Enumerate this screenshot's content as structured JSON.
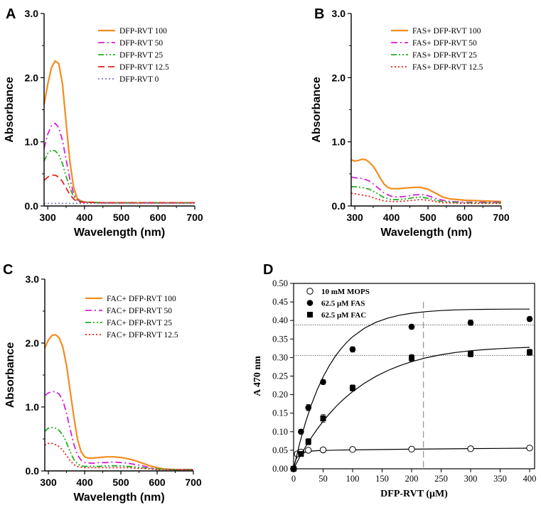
{
  "chart_data": [
    {
      "panel": "A",
      "type": "line",
      "title": "",
      "xlabel": "Wavelength (nm)",
      "ylabel": "Absorbance",
      "xlim": [
        290,
        700
      ],
      "ylim": [
        0,
        3.0
      ],
      "xticks": [
        "300",
        "400",
        "500",
        "600",
        "700"
      ],
      "yticks": [
        "0.0",
        "1.0",
        "2.0",
        "3.0"
      ],
      "legend_position": "top-right",
      "series": [
        {
          "name": "DFP-RVT 100",
          "color": "#f28c1f",
          "dash": "solid",
          "x": [
            290,
            300,
            310,
            320,
            330,
            340,
            350,
            360,
            370,
            380,
            390,
            400,
            450,
            500,
            550,
            600,
            650,
            700
          ],
          "y": [
            1.58,
            1.9,
            2.15,
            2.26,
            2.22,
            1.9,
            1.3,
            0.7,
            0.3,
            0.12,
            0.08,
            0.06,
            0.05,
            0.05,
            0.05,
            0.05,
            0.05,
            0.05
          ]
        },
        {
          "name": "DFP-RVT 50",
          "color": "#d61fd6",
          "dash": "dashdot",
          "x": [
            290,
            300,
            310,
            320,
            330,
            340,
            350,
            360,
            370,
            380,
            390,
            400,
            450,
            500,
            550,
            600,
            650,
            700
          ],
          "y": [
            0.9,
            1.12,
            1.25,
            1.29,
            1.22,
            1.02,
            0.72,
            0.42,
            0.2,
            0.1,
            0.07,
            0.06,
            0.05,
            0.05,
            0.05,
            0.05,
            0.05,
            0.05
          ]
        },
        {
          "name": "DFP-RVT 25",
          "color": "#22b022",
          "dash": "dashdotdot",
          "x": [
            290,
            300,
            310,
            320,
            330,
            340,
            350,
            360,
            370,
            380,
            390,
            400,
            450,
            500,
            550,
            600,
            650,
            700
          ],
          "y": [
            0.7,
            0.82,
            0.87,
            0.86,
            0.8,
            0.66,
            0.46,
            0.28,
            0.15,
            0.09,
            0.07,
            0.06,
            0.05,
            0.05,
            0.05,
            0.05,
            0.05,
            0.05
          ]
        },
        {
          "name": "DFP-RVT 12.5",
          "color": "#e8201c",
          "dash": "dash",
          "x": [
            290,
            300,
            310,
            320,
            330,
            340,
            350,
            360,
            370,
            380,
            390,
            400,
            450,
            500,
            550,
            600,
            650,
            700
          ],
          "y": [
            0.4,
            0.45,
            0.48,
            0.48,
            0.45,
            0.38,
            0.28,
            0.18,
            0.11,
            0.07,
            0.06,
            0.06,
            0.05,
            0.05,
            0.05,
            0.05,
            0.05,
            0.05
          ]
        },
        {
          "name": "DFP-RVT 0",
          "color": "#7b7bc9",
          "dash": "dot",
          "x": [
            290,
            350,
            400,
            500,
            600,
            700
          ],
          "y": [
            0.04,
            0.04,
            0.04,
            0.04,
            0.04,
            0.04
          ]
        }
      ]
    },
    {
      "panel": "B",
      "type": "line",
      "title": "",
      "xlabel": "Wavelength (nm)",
      "ylabel": "Absorbance",
      "xlim": [
        290,
        700
      ],
      "ylim": [
        0,
        3.0
      ],
      "xticks": [
        "300",
        "400",
        "500",
        "600",
        "700"
      ],
      "yticks": [
        "0.0",
        "1.0",
        "2.0",
        "3.0"
      ],
      "legend_position": "top-right",
      "series": [
        {
          "name": "FAS+ DFP-RVT 100",
          "color": "#f28c1f",
          "dash": "solid",
          "x": [
            290,
            300,
            310,
            320,
            330,
            340,
            350,
            360,
            370,
            380,
            390,
            400,
            420,
            440,
            460,
            480,
            500,
            520,
            540,
            560,
            600,
            650,
            700
          ],
          "y": [
            0.72,
            0.7,
            0.71,
            0.73,
            0.72,
            0.68,
            0.62,
            0.53,
            0.43,
            0.34,
            0.29,
            0.27,
            0.27,
            0.28,
            0.29,
            0.29,
            0.26,
            0.2,
            0.14,
            0.11,
            0.09,
            0.08,
            0.07
          ]
        },
        {
          "name": "FAS+ DFP-RVT 50",
          "color": "#d61fd6",
          "dash": "dashdot",
          "x": [
            290,
            300,
            320,
            340,
            360,
            380,
            400,
            420,
            440,
            460,
            480,
            500,
            520,
            540,
            560,
            600,
            650,
            700
          ],
          "y": [
            0.45,
            0.44,
            0.43,
            0.39,
            0.3,
            0.2,
            0.15,
            0.14,
            0.15,
            0.17,
            0.18,
            0.16,
            0.12,
            0.09,
            0.07,
            0.06,
            0.06,
            0.06
          ]
        },
        {
          "name": "FAS+ DFP-RVT 25",
          "color": "#22b022",
          "dash": "dashdotdot",
          "x": [
            290,
            300,
            320,
            340,
            360,
            380,
            400,
            420,
            440,
            460,
            480,
            500,
            520,
            540,
            560,
            600,
            650,
            700
          ],
          "y": [
            0.3,
            0.3,
            0.29,
            0.26,
            0.2,
            0.13,
            0.1,
            0.1,
            0.11,
            0.13,
            0.14,
            0.12,
            0.09,
            0.07,
            0.06,
            0.05,
            0.05,
            0.05
          ]
        },
        {
          "name": "FAS+ DFP-RVT 12.5",
          "color": "#e8201c",
          "dash": "dot",
          "x": [
            290,
            300,
            320,
            340,
            360,
            380,
            400,
            420,
            440,
            460,
            480,
            500,
            520,
            540,
            560,
            600,
            650,
            700
          ],
          "y": [
            0.2,
            0.19,
            0.17,
            0.15,
            0.11,
            0.08,
            0.07,
            0.07,
            0.08,
            0.09,
            0.1,
            0.09,
            0.07,
            0.05,
            0.05,
            0.04,
            0.04,
            0.04
          ]
        }
      ]
    },
    {
      "panel": "C",
      "type": "line",
      "title": "",
      "xlabel": "Wavelength (nm)",
      "ylabel": "Absorbance",
      "xlim": [
        290,
        700
      ],
      "ylim": [
        0,
        3.0
      ],
      "xticks": [
        "300",
        "400",
        "500",
        "600",
        "700"
      ],
      "yticks": [
        "0.0",
        "1.0",
        "2.0",
        "3.0"
      ],
      "legend_position": "top-right",
      "series": [
        {
          "name": "FAC+ DFP-RVT 100",
          "color": "#f28c1f",
          "dash": "solid",
          "x": [
            290,
            300,
            310,
            320,
            330,
            340,
            350,
            360,
            370,
            380,
            390,
            400,
            410,
            420,
            440,
            460,
            480,
            500,
            520,
            540,
            560,
            580,
            600,
            620,
            650,
            700
          ],
          "y": [
            1.92,
            2.05,
            2.12,
            2.13,
            2.08,
            1.93,
            1.65,
            1.25,
            0.85,
            0.5,
            0.3,
            0.22,
            0.2,
            0.2,
            0.21,
            0.22,
            0.22,
            0.21,
            0.19,
            0.16,
            0.12,
            0.08,
            0.05,
            0.03,
            0.02,
            0.02
          ]
        },
        {
          "name": "FAC+ DFP-RVT 50",
          "color": "#d61fd6",
          "dash": "dashdot",
          "x": [
            290,
            300,
            310,
            320,
            330,
            340,
            350,
            360,
            370,
            380,
            390,
            400,
            420,
            440,
            460,
            480,
            500,
            520,
            540,
            560,
            580,
            600,
            650,
            700
          ],
          "y": [
            1.18,
            1.22,
            1.24,
            1.24,
            1.2,
            1.1,
            0.9,
            0.65,
            0.42,
            0.25,
            0.17,
            0.13,
            0.12,
            0.13,
            0.13,
            0.14,
            0.13,
            0.12,
            0.1,
            0.08,
            0.05,
            0.03,
            0.02,
            0.02
          ]
        },
        {
          "name": "FAC+ DFP-RVT 25",
          "color": "#22b022",
          "dash": "dashdotdot",
          "x": [
            290,
            300,
            310,
            320,
            330,
            340,
            350,
            360,
            370,
            380,
            390,
            400,
            420,
            440,
            460,
            480,
            500,
            520,
            540,
            560,
            580,
            600,
            650,
            700
          ],
          "y": [
            0.62,
            0.67,
            0.68,
            0.67,
            0.63,
            0.56,
            0.44,
            0.3,
            0.18,
            0.11,
            0.08,
            0.07,
            0.07,
            0.07,
            0.08,
            0.08,
            0.08,
            0.07,
            0.06,
            0.05,
            0.04,
            0.03,
            0.02,
            0.02
          ]
        },
        {
          "name": "FAC+ DFP-RVT 12.5",
          "color": "#e8201c",
          "dash": "dot",
          "x": [
            290,
            300,
            310,
            320,
            330,
            340,
            350,
            360,
            370,
            380,
            390,
            400,
            420,
            440,
            460,
            480,
            500,
            520,
            540,
            560,
            580,
            600,
            650,
            700
          ],
          "y": [
            0.4,
            0.43,
            0.43,
            0.41,
            0.38,
            0.32,
            0.24,
            0.16,
            0.1,
            0.07,
            0.06,
            0.05,
            0.05,
            0.05,
            0.05,
            0.05,
            0.05,
            0.05,
            0.04,
            0.04,
            0.03,
            0.02,
            0.02,
            0.02
          ]
        }
      ]
    },
    {
      "panel": "D",
      "type": "scatter",
      "title": "",
      "xlabel": "DFP-RVT (μM)",
      "ylabel": "A 470 nm",
      "xlim": [
        0,
        400
      ],
      "ylim": [
        0,
        0.5
      ],
      "xticks": [
        "0",
        "50",
        "100",
        "150",
        "200",
        "250",
        "300",
        "350",
        "400"
      ],
      "yticks": [
        "0.00",
        "0.05",
        "0.10",
        "0.15",
        "0.20",
        "0.25",
        "0.30",
        "0.35",
        "0.40",
        "0.45",
        "0.50"
      ],
      "legend_position": "top-left",
      "reference_lines": {
        "h": [
          0.388,
          0.306
        ],
        "v": [
          220
        ]
      },
      "series": [
        {
          "name": "10 mM MOPS",
          "marker": "open-circle",
          "x": [
            0,
            6.25,
            12.5,
            25,
            50,
            100,
            200,
            300,
            400
          ],
          "y": [
            0.0,
            0.04,
            0.045,
            0.05,
            0.051,
            0.052,
            0.053,
            0.054,
            0.056
          ],
          "err": [
            0.003,
            0.003,
            0.003,
            0.003,
            0.003,
            0.003,
            0.003,
            0.003,
            0.003
          ],
          "fit_x": [
            0,
            2,
            4,
            6,
            8,
            10,
            12,
            15,
            20,
            25,
            30,
            40,
            50,
            75,
            100,
            150,
            200,
            250,
            300,
            350,
            400
          ],
          "fit_y": [
            0.0,
            0.0159,
            0.0255,
            0.0314,
            0.0351,
            0.0375,
            0.039,
            0.0416,
            0.0452,
            0.0466,
            0.0477,
            0.0488,
            0.0495,
            0.0504,
            0.051,
            0.052,
            0.0529,
            0.0537,
            0.0544,
            0.055,
            0.0556
          ]
        },
        {
          "name": "62.5 μM FAS",
          "marker": "filled-circle",
          "x": [
            0,
            12.5,
            25,
            50,
            100,
            200,
            300,
            400
          ],
          "y": [
            0.0,
            0.1,
            0.165,
            0.234,
            0.322,
            0.383,
            0.394,
            0.404
          ],
          "err": [
            0.004,
            0.006,
            0.008,
            0.006,
            0.007,
            0.006,
            0.007,
            0.006
          ],
          "fit_x": [
            0,
            10,
            20,
            30,
            40,
            50,
            60,
            70,
            80,
            90,
            100,
            120,
            140,
            160,
            180,
            200,
            225,
            250,
            275,
            300,
            325,
            350,
            375,
            400
          ],
          "fit_y": [
            0.0,
            0.0673,
            0.1242,
            0.1724,
            0.2133,
            0.2478,
            0.2771,
            0.302,
            0.323,
            0.341,
            0.356,
            0.3792,
            0.3954,
            0.4066,
            0.4143,
            0.4195,
            0.424,
            0.4268,
            0.4285,
            0.4295,
            0.43,
            0.4304,
            0.4306,
            0.4307
          ]
        },
        {
          "name": "62.5 μM FAC",
          "marker": "filled-square",
          "x": [
            0,
            12.5,
            25,
            50,
            100,
            200,
            300,
            400
          ],
          "y": [
            0.0,
            0.04,
            0.073,
            0.136,
            0.218,
            0.299,
            0.31,
            0.314
          ],
          "err": [
            0.004,
            0.006,
            0.008,
            0.01,
            0.008,
            0.009,
            0.008,
            0.008
          ],
          "fit_x": [
            0,
            10,
            20,
            30,
            40,
            50,
            60,
            70,
            80,
            90,
            100,
            120,
            140,
            160,
            180,
            200,
            225,
            250,
            275,
            300,
            325,
            350,
            375,
            400
          ],
          "fit_y": [
            0.0,
            0.0306,
            0.0585,
            0.0839,
            0.107,
            0.128,
            0.1472,
            0.1647,
            0.1806,
            0.195,
            0.2081,
            0.2309,
            0.2497,
            0.2653,
            0.2782,
            0.2889,
            0.2997,
            0.3077,
            0.3138,
            0.3183,
            0.3216,
            0.3241,
            0.326,
            0.3275
          ]
        }
      ]
    }
  ]
}
